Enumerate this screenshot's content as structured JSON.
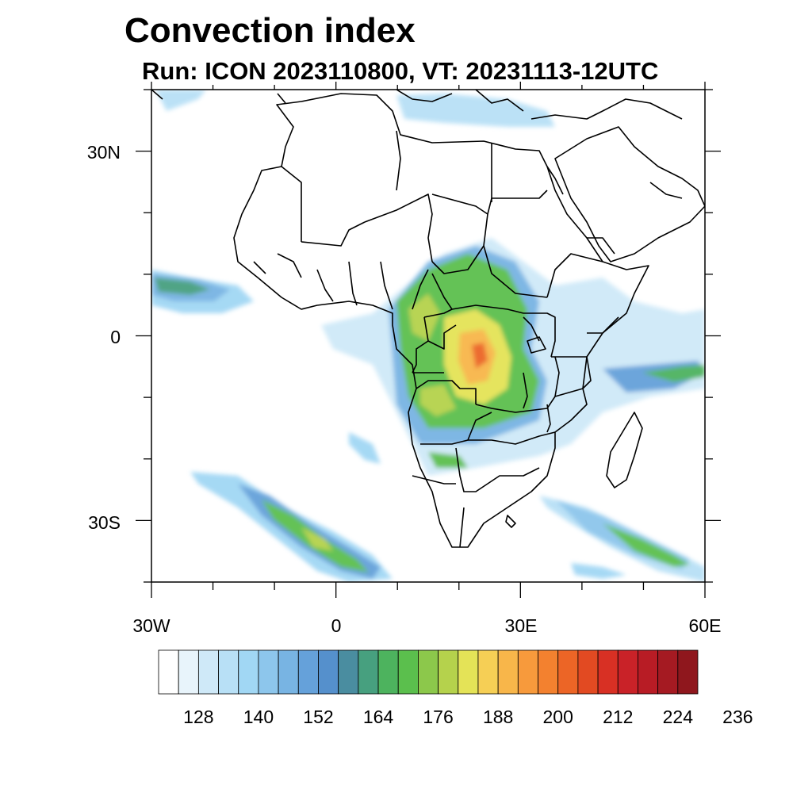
{
  "title": "Convection index",
  "subtitle": "Run: ICON 2023110800,  VT: 20231113-12UTC",
  "map": {
    "region": "Africa",
    "lon_range": [
      -30,
      60
    ],
    "lat_range": [
      -40,
      40
    ],
    "lat_ticks": [
      "30N",
      "0",
      "30S"
    ],
    "lon_ticks": [
      "30W",
      "0",
      "30E",
      "60E"
    ]
  },
  "colorbar": {
    "tick_labels": [
      "128",
      "140",
      "152",
      "164",
      "176",
      "188",
      "200",
      "212",
      "224",
      "236"
    ],
    "colors": [
      "#ffffff",
      "#e8f4fb",
      "#cfe9f8",
      "#b8e0f6",
      "#a1d7f4",
      "#8dc6ec",
      "#78b4e3",
      "#65a1da",
      "#5590cc",
      "#4a8da0",
      "#47a07f",
      "#4db35e",
      "#5bbf4d",
      "#8cc84b",
      "#b5d24c",
      "#e4e357",
      "#f6cf55",
      "#f8b64a",
      "#f79a3c",
      "#f3812f",
      "#ec6526",
      "#e24a22",
      "#d83024",
      "#c92228",
      "#b81c25",
      "#a51a22",
      "#8f171d"
    ]
  }
}
